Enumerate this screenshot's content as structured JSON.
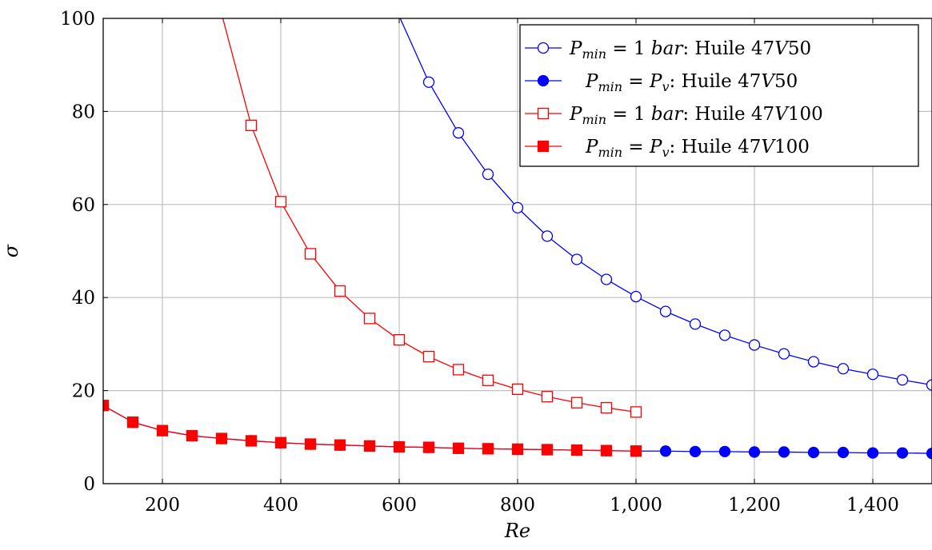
{
  "chart_data": {
    "type": "line",
    "xlabel": "Re",
    "ylabel": "σ",
    "xlim": [
      100,
      1500
    ],
    "ylim": [
      0,
      100
    ],
    "x_ticks": [
      200,
      400,
      600,
      800,
      1000,
      1200,
      1400
    ],
    "x_tick_labels": [
      "200",
      "400",
      "600",
      "800",
      "1,000",
      "1,200",
      "1,400"
    ],
    "y_ticks": [
      0,
      20,
      40,
      60,
      80,
      100
    ],
    "y_tick_labels": [
      "0",
      "20",
      "40",
      "60",
      "80",
      "100"
    ],
    "grid": true,
    "legend_position": "top-right",
    "series": [
      {
        "name": "P_min = 1 bar: Huile 47V50",
        "legend_main": "P",
        "legend_sub": "min",
        "legend_eq": " = 1 ",
        "legend_unit": "bar",
        "legend_rest": ": Huile 47",
        "legend_v": "V",
        "legend_num": "50",
        "color": "#0000ff",
        "marker": "circle",
        "filled": false,
        "x": [
          600,
          650,
          700,
          750,
          800,
          850,
          900,
          950,
          1000,
          1050,
          1100,
          1150,
          1200,
          1250,
          1300,
          1350,
          1400,
          1450,
          1500
        ],
        "y": [
          100.5,
          86.3,
          75.4,
          66.5,
          59.3,
          53.2,
          48.2,
          43.9,
          40.2,
          37.0,
          34.3,
          31.9,
          29.8,
          27.9,
          26.2,
          24.7,
          23.5,
          22.3,
          21.2
        ]
      },
      {
        "name": "P_min = P_v: Huile 47V50",
        "legend_main": "P",
        "legend_sub": "min",
        "legend_eq": " = ",
        "legend_pv": "P",
        "legend_pv_sub": "v",
        "legend_rest": ": Huile 47",
        "legend_v": "V",
        "legend_num": "50",
        "color": "#0000ff",
        "marker": "circle",
        "filled": true,
        "x": [
          100,
          150,
          200,
          250,
          300,
          350,
          400,
          450,
          500,
          550,
          600,
          650,
          700,
          750,
          800,
          850,
          900,
          950,
          1000,
          1050,
          1100,
          1150,
          1200,
          1250,
          1300,
          1350,
          1400,
          1450,
          1500
        ],
        "y": [
          16.8,
          13.2,
          11.4,
          10.3,
          9.7,
          9.2,
          8.8,
          8.5,
          8.3,
          8.1,
          7.9,
          7.8,
          7.6,
          7.5,
          7.4,
          7.3,
          7.2,
          7.1,
          7.0,
          7.0,
          6.9,
          6.9,
          6.8,
          6.8,
          6.7,
          6.7,
          6.6,
          6.6,
          6.5
        ]
      },
      {
        "name": "P_min = 1 bar: Huile 47V100",
        "legend_main": "P",
        "legend_sub": "min",
        "legend_eq": " = 1 ",
        "legend_unit": "bar",
        "legend_rest": ": Huile 47",
        "legend_v": "V",
        "legend_num": "100",
        "color": "#ff0000",
        "marker": "square",
        "filled": false,
        "x": [
          300,
          350,
          400,
          450,
          500,
          550,
          600,
          650,
          700,
          750,
          800,
          850,
          900,
          950,
          1000
        ],
        "y": [
          101,
          77.0,
          60.6,
          49.4,
          41.4,
          35.5,
          30.9,
          27.3,
          24.5,
          22.2,
          20.3,
          18.7,
          17.4,
          16.3,
          15.4
        ]
      },
      {
        "name": "P_min = P_v: Huile 47V100",
        "legend_main": "P",
        "legend_sub": "min",
        "legend_eq": " = ",
        "legend_pv": "P",
        "legend_pv_sub": "v",
        "legend_rest": ": Huile 47",
        "legend_v": "V",
        "legend_num": "100",
        "color": "#ff0000",
        "marker": "square",
        "filled": true,
        "x": [
          100,
          150,
          200,
          250,
          300,
          350,
          400,
          450,
          500,
          550,
          600,
          650,
          700,
          750,
          800,
          850,
          900,
          950,
          1000
        ],
        "y": [
          16.8,
          13.2,
          11.4,
          10.3,
          9.7,
          9.2,
          8.8,
          8.5,
          8.3,
          8.1,
          7.9,
          7.8,
          7.6,
          7.5,
          7.4,
          7.3,
          7.2,
          7.1,
          7.0
        ]
      }
    ]
  }
}
